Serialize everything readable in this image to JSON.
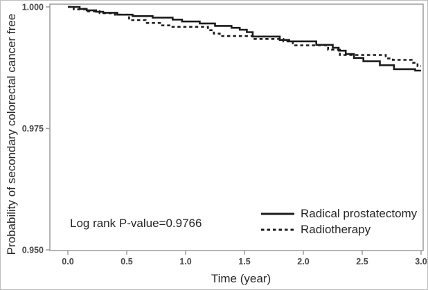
{
  "figure": {
    "background": "#ffffff",
    "border_color": "#bdbdbd"
  },
  "chart_data": {
    "type": "line",
    "subtype": "kaplan-meier-step-curves",
    "title": "",
    "xlabel": "Time (year)",
    "ylabel": "Probability of secondary colorectal cancer free",
    "annotation": "Log rank P-value=0.9766",
    "x_ticks": [
      "0.0",
      "0.5",
      "1.0",
      "1.5",
      "2.0",
      "2.5",
      "3.0"
    ],
    "y_ticks": [
      "1.000",
      "0.975",
      "0.950"
    ],
    "xlim": [
      0.0,
      3.0
    ],
    "ylim": [
      0.95,
      1.0
    ],
    "grid": false,
    "legend_position": "inside lower right",
    "colors": {
      "curve": "#1b1b1b",
      "axis": "#9b9b9b",
      "tick_label": "#474747",
      "text": "#262626"
    },
    "series": [
      {
        "name": "Radical prostatectomy",
        "line_style": "solid",
        "points": [
          [
            0.0,
            1.0
          ],
          [
            0.1,
            0.9996
          ],
          [
            0.16,
            0.9993
          ],
          [
            0.24,
            0.999
          ],
          [
            0.3,
            0.9988
          ],
          [
            0.42,
            0.9984
          ],
          [
            0.55,
            0.9981
          ],
          [
            0.72,
            0.9978
          ],
          [
            0.89,
            0.9974
          ],
          [
            0.97,
            0.997
          ],
          [
            1.12,
            0.9966
          ],
          [
            1.25,
            0.9961
          ],
          [
            1.39,
            0.9957
          ],
          [
            1.46,
            0.9953
          ],
          [
            1.52,
            0.9948
          ],
          [
            1.57,
            0.9939
          ],
          [
            1.8,
            0.9932
          ],
          [
            1.88,
            0.9929
          ],
          [
            2.11,
            0.9922
          ],
          [
            2.25,
            0.9916
          ],
          [
            2.3,
            0.991
          ],
          [
            2.36,
            0.9903
          ],
          [
            2.43,
            0.9895
          ],
          [
            2.51,
            0.9888
          ],
          [
            2.65,
            0.988
          ],
          [
            2.77,
            0.9872
          ],
          [
            2.95,
            0.9869
          ],
          [
            3.0,
            0.9869
          ]
        ]
      },
      {
        "name": "Radiotherapy",
        "line_style": "dashed",
        "points": [
          [
            0.0,
            1.0
          ],
          [
            0.05,
            0.9995
          ],
          [
            0.16,
            0.9991
          ],
          [
            0.27,
            0.9987
          ],
          [
            0.4,
            0.9984
          ],
          [
            0.52,
            0.9973
          ],
          [
            0.66,
            0.9967
          ],
          [
            0.79,
            0.9962
          ],
          [
            0.88,
            0.9959
          ],
          [
            1.19,
            0.9952
          ],
          [
            1.24,
            0.9945
          ],
          [
            1.29,
            0.994
          ],
          [
            1.57,
            0.9934
          ],
          [
            1.83,
            0.9929
          ],
          [
            1.91,
            0.9921
          ],
          [
            2.21,
            0.9912
          ],
          [
            2.31,
            0.9901
          ],
          [
            2.7,
            0.9894
          ],
          [
            2.76,
            0.9891
          ],
          [
            2.92,
            0.9885
          ],
          [
            2.97,
            0.9878
          ],
          [
            3.0,
            0.9878
          ]
        ]
      }
    ]
  }
}
